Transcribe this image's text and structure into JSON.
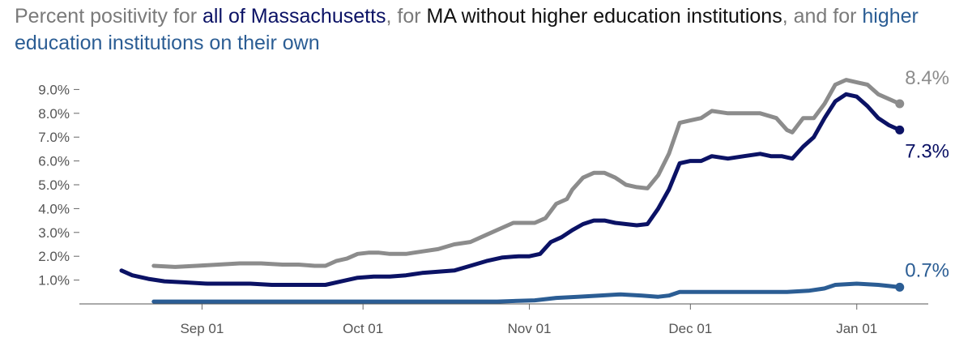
{
  "title": {
    "parts": [
      {
        "text": "Percent positivity for ",
        "color": "#7a7a7a"
      },
      {
        "text": "all of Massachusetts",
        "color": "#0b1265"
      },
      {
        "text": ", for ",
        "color": "#7a7a7a"
      },
      {
        "text": "MA without higher education institutions",
        "color": "#111111"
      },
      {
        "text": ", and for ",
        "color": "#7a7a7a"
      },
      {
        "text": "higher education institutions on their own",
        "color": "#2b5d94"
      }
    ]
  },
  "chart_data": {
    "type": "line",
    "title": "Percent positivity for all of Massachusetts, for MA without higher education institutions, and for higher education institutions on their own",
    "xlabel": "",
    "ylabel": "",
    "x_ticks": [
      {
        "label": "Sep 01",
        "day": 15
      },
      {
        "label": "Oct 01",
        "day": 45
      },
      {
        "label": "Nov 01",
        "day": 76
      },
      {
        "label": "Dec 01",
        "day": 106
      },
      {
        "label": "Jan 01",
        "day": 137
      }
    ],
    "x_range_days": [
      0,
      147
    ],
    "x_note": "day 0 = Aug 17",
    "y_ticks": [
      "1.0%",
      "2.0%",
      "3.0%",
      "4.0%",
      "5.0%",
      "6.0%",
      "7.0%",
      "8.0%",
      "9.0%"
    ],
    "ylim": [
      0,
      10
    ],
    "series": [
      {
        "name": "MA without higher education institutions",
        "color": "#8c8c8c",
        "end_label": "8.4%",
        "points": [
          [
            6,
            1.6
          ],
          [
            10,
            1.55
          ],
          [
            14,
            1.6
          ],
          [
            18,
            1.65
          ],
          [
            22,
            1.7
          ],
          [
            26,
            1.7
          ],
          [
            30,
            1.65
          ],
          [
            33,
            1.65
          ],
          [
            36,
            1.6
          ],
          [
            38,
            1.6
          ],
          [
            40,
            1.8
          ],
          [
            42,
            1.9
          ],
          [
            44,
            2.1
          ],
          [
            46,
            2.15
          ],
          [
            48,
            2.15
          ],
          [
            50,
            2.1
          ],
          [
            53,
            2.1
          ],
          [
            56,
            2.2
          ],
          [
            59,
            2.3
          ],
          [
            62,
            2.5
          ],
          [
            65,
            2.6
          ],
          [
            68,
            2.9
          ],
          [
            71,
            3.2
          ],
          [
            73,
            3.4
          ],
          [
            75,
            3.4
          ],
          [
            77,
            3.4
          ],
          [
            79,
            3.6
          ],
          [
            81,
            4.2
          ],
          [
            83,
            4.4
          ],
          [
            84,
            4.8
          ],
          [
            86,
            5.3
          ],
          [
            88,
            5.5
          ],
          [
            90,
            5.5
          ],
          [
            92,
            5.3
          ],
          [
            94,
            5.0
          ],
          [
            96,
            4.9
          ],
          [
            98,
            4.85
          ],
          [
            100,
            5.4
          ],
          [
            102,
            6.3
          ],
          [
            104,
            7.6
          ],
          [
            106,
            7.7
          ],
          [
            108,
            7.8
          ],
          [
            110,
            8.1
          ],
          [
            113,
            8.0
          ],
          [
            116,
            8.0
          ],
          [
            119,
            8.0
          ],
          [
            122,
            7.8
          ],
          [
            124,
            7.3
          ],
          [
            125,
            7.2
          ],
          [
            127,
            7.8
          ],
          [
            129,
            7.8
          ],
          [
            131,
            8.4
          ],
          [
            133,
            9.2
          ],
          [
            135,
            9.4
          ],
          [
            137,
            9.3
          ],
          [
            139,
            9.2
          ],
          [
            141,
            8.8
          ],
          [
            143,
            8.6
          ],
          [
            145,
            8.4
          ]
        ]
      },
      {
        "name": "All of Massachusetts",
        "color": "#0b1265",
        "end_label": "7.3%",
        "points": [
          [
            0,
            1.4
          ],
          [
            2,
            1.2
          ],
          [
            5,
            1.05
          ],
          [
            8,
            0.95
          ],
          [
            12,
            0.9
          ],
          [
            16,
            0.85
          ],
          [
            20,
            0.85
          ],
          [
            24,
            0.85
          ],
          [
            28,
            0.8
          ],
          [
            32,
            0.8
          ],
          [
            36,
            0.8
          ],
          [
            38,
            0.8
          ],
          [
            41,
            0.95
          ],
          [
            44,
            1.1
          ],
          [
            47,
            1.15
          ],
          [
            50,
            1.15
          ],
          [
            53,
            1.2
          ],
          [
            56,
            1.3
          ],
          [
            59,
            1.35
          ],
          [
            62,
            1.4
          ],
          [
            65,
            1.6
          ],
          [
            68,
            1.8
          ],
          [
            71,
            1.95
          ],
          [
            74,
            2.0
          ],
          [
            76,
            2.0
          ],
          [
            78,
            2.1
          ],
          [
            80,
            2.6
          ],
          [
            82,
            2.8
          ],
          [
            84,
            3.1
          ],
          [
            86,
            3.35
          ],
          [
            88,
            3.5
          ],
          [
            90,
            3.5
          ],
          [
            92,
            3.4
          ],
          [
            94,
            3.35
          ],
          [
            96,
            3.3
          ],
          [
            98,
            3.35
          ],
          [
            100,
            4.0
          ],
          [
            102,
            4.8
          ],
          [
            104,
            5.9
          ],
          [
            106,
            6.0
          ],
          [
            108,
            6.0
          ],
          [
            110,
            6.2
          ],
          [
            113,
            6.1
          ],
          [
            116,
            6.2
          ],
          [
            119,
            6.3
          ],
          [
            121,
            6.2
          ],
          [
            123,
            6.2
          ],
          [
            125,
            6.1
          ],
          [
            127,
            6.6
          ],
          [
            129,
            7.0
          ],
          [
            131,
            7.8
          ],
          [
            133,
            8.5
          ],
          [
            135,
            8.8
          ],
          [
            137,
            8.7
          ],
          [
            139,
            8.3
          ],
          [
            141,
            7.8
          ],
          [
            143,
            7.5
          ],
          [
            145,
            7.3
          ]
        ]
      },
      {
        "name": "Higher education institutions on their own",
        "color": "#2b5d94",
        "end_label": "0.7%",
        "points": [
          [
            6,
            0.1
          ],
          [
            20,
            0.1
          ],
          [
            30,
            0.1
          ],
          [
            45,
            0.1
          ],
          [
            58,
            0.1
          ],
          [
            70,
            0.1
          ],
          [
            77,
            0.15
          ],
          [
            81,
            0.25
          ],
          [
            85,
            0.3
          ],
          [
            89,
            0.35
          ],
          [
            93,
            0.4
          ],
          [
            97,
            0.35
          ],
          [
            100,
            0.3
          ],
          [
            102,
            0.35
          ],
          [
            104,
            0.5
          ],
          [
            108,
            0.5
          ],
          [
            112,
            0.5
          ],
          [
            116,
            0.5
          ],
          [
            120,
            0.5
          ],
          [
            124,
            0.5
          ],
          [
            128,
            0.55
          ],
          [
            131,
            0.65
          ],
          [
            133,
            0.8
          ],
          [
            137,
            0.85
          ],
          [
            141,
            0.8
          ],
          [
            143,
            0.75
          ],
          [
            145,
            0.7
          ]
        ]
      }
    ]
  }
}
